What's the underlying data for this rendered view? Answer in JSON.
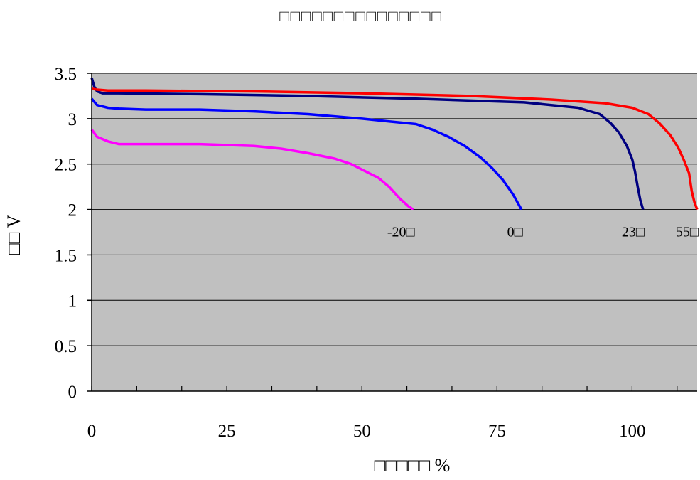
{
  "chart_data": {
    "type": "line",
    "title": "□□□□□□□□□□□□□□□",
    "xlabel": "□□□□□ %",
    "ylabel": "□□ V",
    "xlim": [
      0,
      112
    ],
    "ylim": [
      0,
      3.5
    ],
    "x_ticks": [
      0,
      25,
      50,
      75,
      100
    ],
    "y_ticks": [
      0,
      0.5,
      1,
      1.5,
      2,
      2.5,
      3,
      3.5
    ],
    "x_tick_labels": [
      "0",
      "25",
      "50",
      "75",
      "100"
    ],
    "y_tick_labels": [
      "0",
      "0.5",
      "1",
      "1.5",
      "2",
      "2.5",
      "3",
      "3.5"
    ],
    "grid": "horizontal",
    "background": "#c0c0c0",
    "series": [
      {
        "name": "-20□",
        "color": "#ff00ff",
        "x": [
          0,
          1,
          3,
          5,
          10,
          20,
          30,
          35,
          40,
          45,
          48,
          50,
          53,
          55,
          57,
          58.5,
          59.5
        ],
        "y": [
          2.88,
          2.8,
          2.75,
          2.72,
          2.72,
          2.72,
          2.7,
          2.67,
          2.62,
          2.56,
          2.5,
          2.44,
          2.35,
          2.25,
          2.12,
          2.04,
          2.0
        ]
      },
      {
        "name": "0□",
        "color": "#0000ff",
        "x": [
          0,
          1,
          3,
          5,
          10,
          20,
          30,
          40,
          50,
          55,
          60,
          63,
          66,
          69,
          72,
          74,
          76,
          78,
          79.5
        ],
        "y": [
          3.22,
          3.15,
          3.12,
          3.11,
          3.1,
          3.1,
          3.08,
          3.05,
          3.0,
          2.97,
          2.94,
          2.88,
          2.8,
          2.7,
          2.57,
          2.46,
          2.33,
          2.16,
          2.0
        ]
      },
      {
        "name": "23□",
        "color": "#000080",
        "x": [
          0,
          0.5,
          1,
          2,
          5,
          20,
          40,
          60,
          80,
          90,
          94,
          96,
          97.5,
          99,
          100,
          100.5,
          101,
          101.5,
          102
        ],
        "y": [
          3.45,
          3.35,
          3.3,
          3.28,
          3.28,
          3.27,
          3.25,
          3.22,
          3.18,
          3.12,
          3.05,
          2.95,
          2.85,
          2.7,
          2.55,
          2.42,
          2.25,
          2.1,
          2.0
        ]
      },
      {
        "name": "55□",
        "color": "#ff0000",
        "x": [
          0,
          1,
          3,
          10,
          30,
          50,
          70,
          85,
          95,
          100,
          103,
          105,
          107,
          108.5,
          109.5,
          110.5,
          111,
          111.5,
          112
        ],
        "y": [
          3.33,
          3.32,
          3.31,
          3.31,
          3.3,
          3.28,
          3.25,
          3.21,
          3.17,
          3.12,
          3.05,
          2.95,
          2.82,
          2.68,
          2.55,
          2.4,
          2.2,
          2.08,
          2.0
        ]
      }
    ]
  }
}
